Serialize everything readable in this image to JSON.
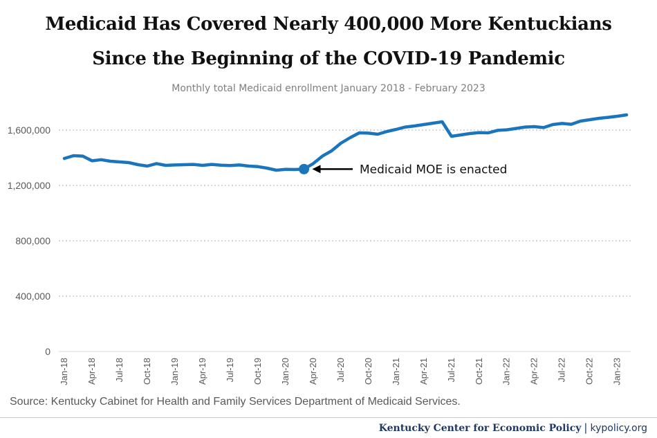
{
  "chart_data": {
    "type": "line",
    "title": "Medicaid Has Covered Nearly 400,000 More Kentuckians",
    "title_line2": "Since the Beginning of the COVID-19 Pandemic",
    "subtitle": "Monthly total Medicaid enrollment January 2018 - February 2023",
    "x_tick_labels": [
      "Jan-18",
      "Apr-18",
      "Jul-18",
      "Oct-18",
      "Jan-19",
      "Apr-19",
      "Jul-19",
      "Oct-19",
      "Jan-20",
      "Apr-20",
      "Jul-20",
      "Oct-20",
      "Jan-21",
      "Apr-21",
      "Jul-21",
      "Oct-21",
      "Jan-22",
      "Apr-22",
      "Jul-22",
      "Oct-22",
      "Jan-23"
    ],
    "y_tick_labels": [
      "0",
      "400,000",
      "800,000",
      "1,200,000",
      "1,600,000"
    ],
    "ylim": [
      0,
      1700000
    ],
    "y_ticks": [
      0,
      400000,
      800000,
      1200000,
      1600000
    ],
    "grid": true,
    "line_color": "#1a75bc",
    "grid_color": "#bfbfbf",
    "series": [
      {
        "x": [
          "Jan-18",
          "Feb-18",
          "Mar-18",
          "Apr-18",
          "May-18",
          "Jun-18",
          "Jul-18",
          "Aug-18",
          "Sep-18",
          "Oct-18",
          "Nov-18",
          "Dec-18",
          "Jan-19",
          "Feb-19",
          "Mar-19",
          "Apr-19",
          "May-19",
          "Jun-19",
          "Jul-19",
          "Aug-19",
          "Sep-19",
          "Oct-19",
          "Nov-19",
          "Dec-19",
          "Jan-20",
          "Feb-20",
          "Mar-20",
          "Apr-20",
          "May-20",
          "Jun-20",
          "Jul-20",
          "Aug-20",
          "Sep-20",
          "Oct-20",
          "Nov-20",
          "Dec-20",
          "Jan-21",
          "Feb-21",
          "Mar-21",
          "Apr-21",
          "May-21",
          "Jun-21",
          "Jul-21",
          "Aug-21",
          "Sep-21",
          "Oct-21",
          "Nov-21",
          "Dec-21",
          "Jan-22",
          "Feb-22",
          "Mar-22",
          "Apr-22",
          "May-22",
          "Jun-22",
          "Jul-22",
          "Aug-22",
          "Sep-22",
          "Oct-22",
          "Nov-22",
          "Dec-22",
          "Jan-23",
          "Feb-23"
        ],
        "values": [
          1395000,
          1415000,
          1412000,
          1378000,
          1386000,
          1375000,
          1370000,
          1365000,
          1350000,
          1340000,
          1358000,
          1345000,
          1348000,
          1350000,
          1352000,
          1345000,
          1352000,
          1346000,
          1344000,
          1348000,
          1340000,
          1336000,
          1325000,
          1310000,
          1316000,
          1315000,
          1318000,
          1358000,
          1412000,
          1450000,
          1505000,
          1545000,
          1580000,
          1578000,
          1570000,
          1590000,
          1605000,
          1622000,
          1630000,
          1640000,
          1650000,
          1660000,
          1555000,
          1565000,
          1575000,
          1582000,
          1580000,
          1598000,
          1602000,
          1612000,
          1622000,
          1625000,
          1618000,
          1640000,
          1648000,
          1642000,
          1665000,
          1675000,
          1685000,
          1692000,
          1700000,
          1710000
        ]
      }
    ],
    "annotation": {
      "text": "Medicaid MOE is enacted",
      "x": "Mar-20",
      "y": 1318000
    }
  },
  "source": "Source: Kentucky Cabinet for Health and Family Services Department of Medicaid Services.",
  "footer": {
    "org": "Kentucky Center for Economic Policy",
    "separator": "|",
    "url": "kypolicy.org"
  }
}
